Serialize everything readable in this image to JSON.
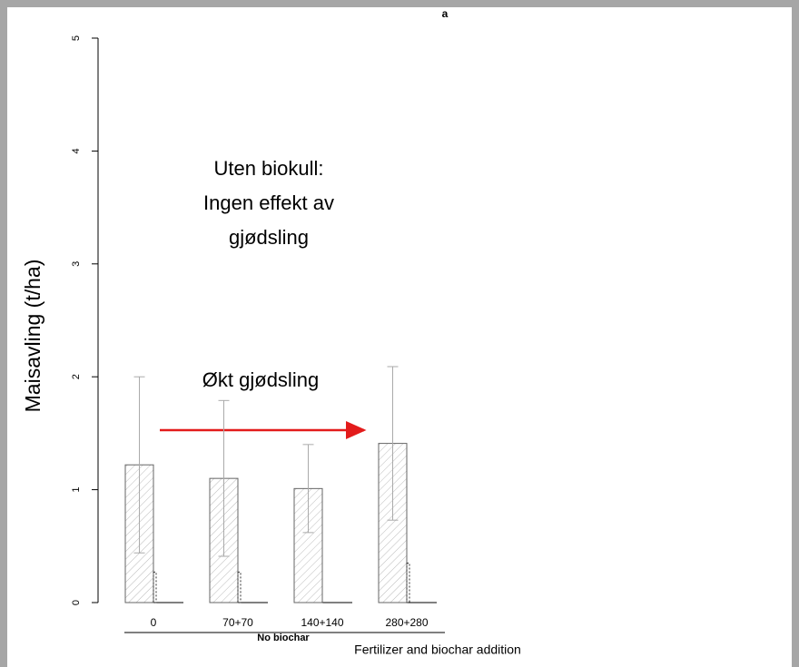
{
  "chart_data": {
    "type": "bar",
    "title": "a",
    "y_label": "Maisavling (t/ha)",
    "x_label": "Fertilizer and biochar addition",
    "group_label": "No biochar",
    "categories": [
      "0",
      "70+70",
      "140+140",
      "280+280"
    ],
    "series": [
      {
        "values": [
          1.22,
          1.1,
          1.01,
          1.41
        ],
        "errors": [
          0.78,
          0.69,
          0.39,
          0.68
        ],
        "color": "#b0b0b0"
      },
      {
        "values": [
          0.27,
          0.27,
          0,
          0.35
        ],
        "color": "#333333"
      }
    ],
    "ylim": [
      0,
      5
    ],
    "yticks": [
      0,
      1,
      2,
      3,
      4,
      5
    ],
    "annotations": [
      "Uten biokull:",
      "Ingen effekt av",
      "gjødsling",
      "Økt gjødsling"
    ]
  }
}
